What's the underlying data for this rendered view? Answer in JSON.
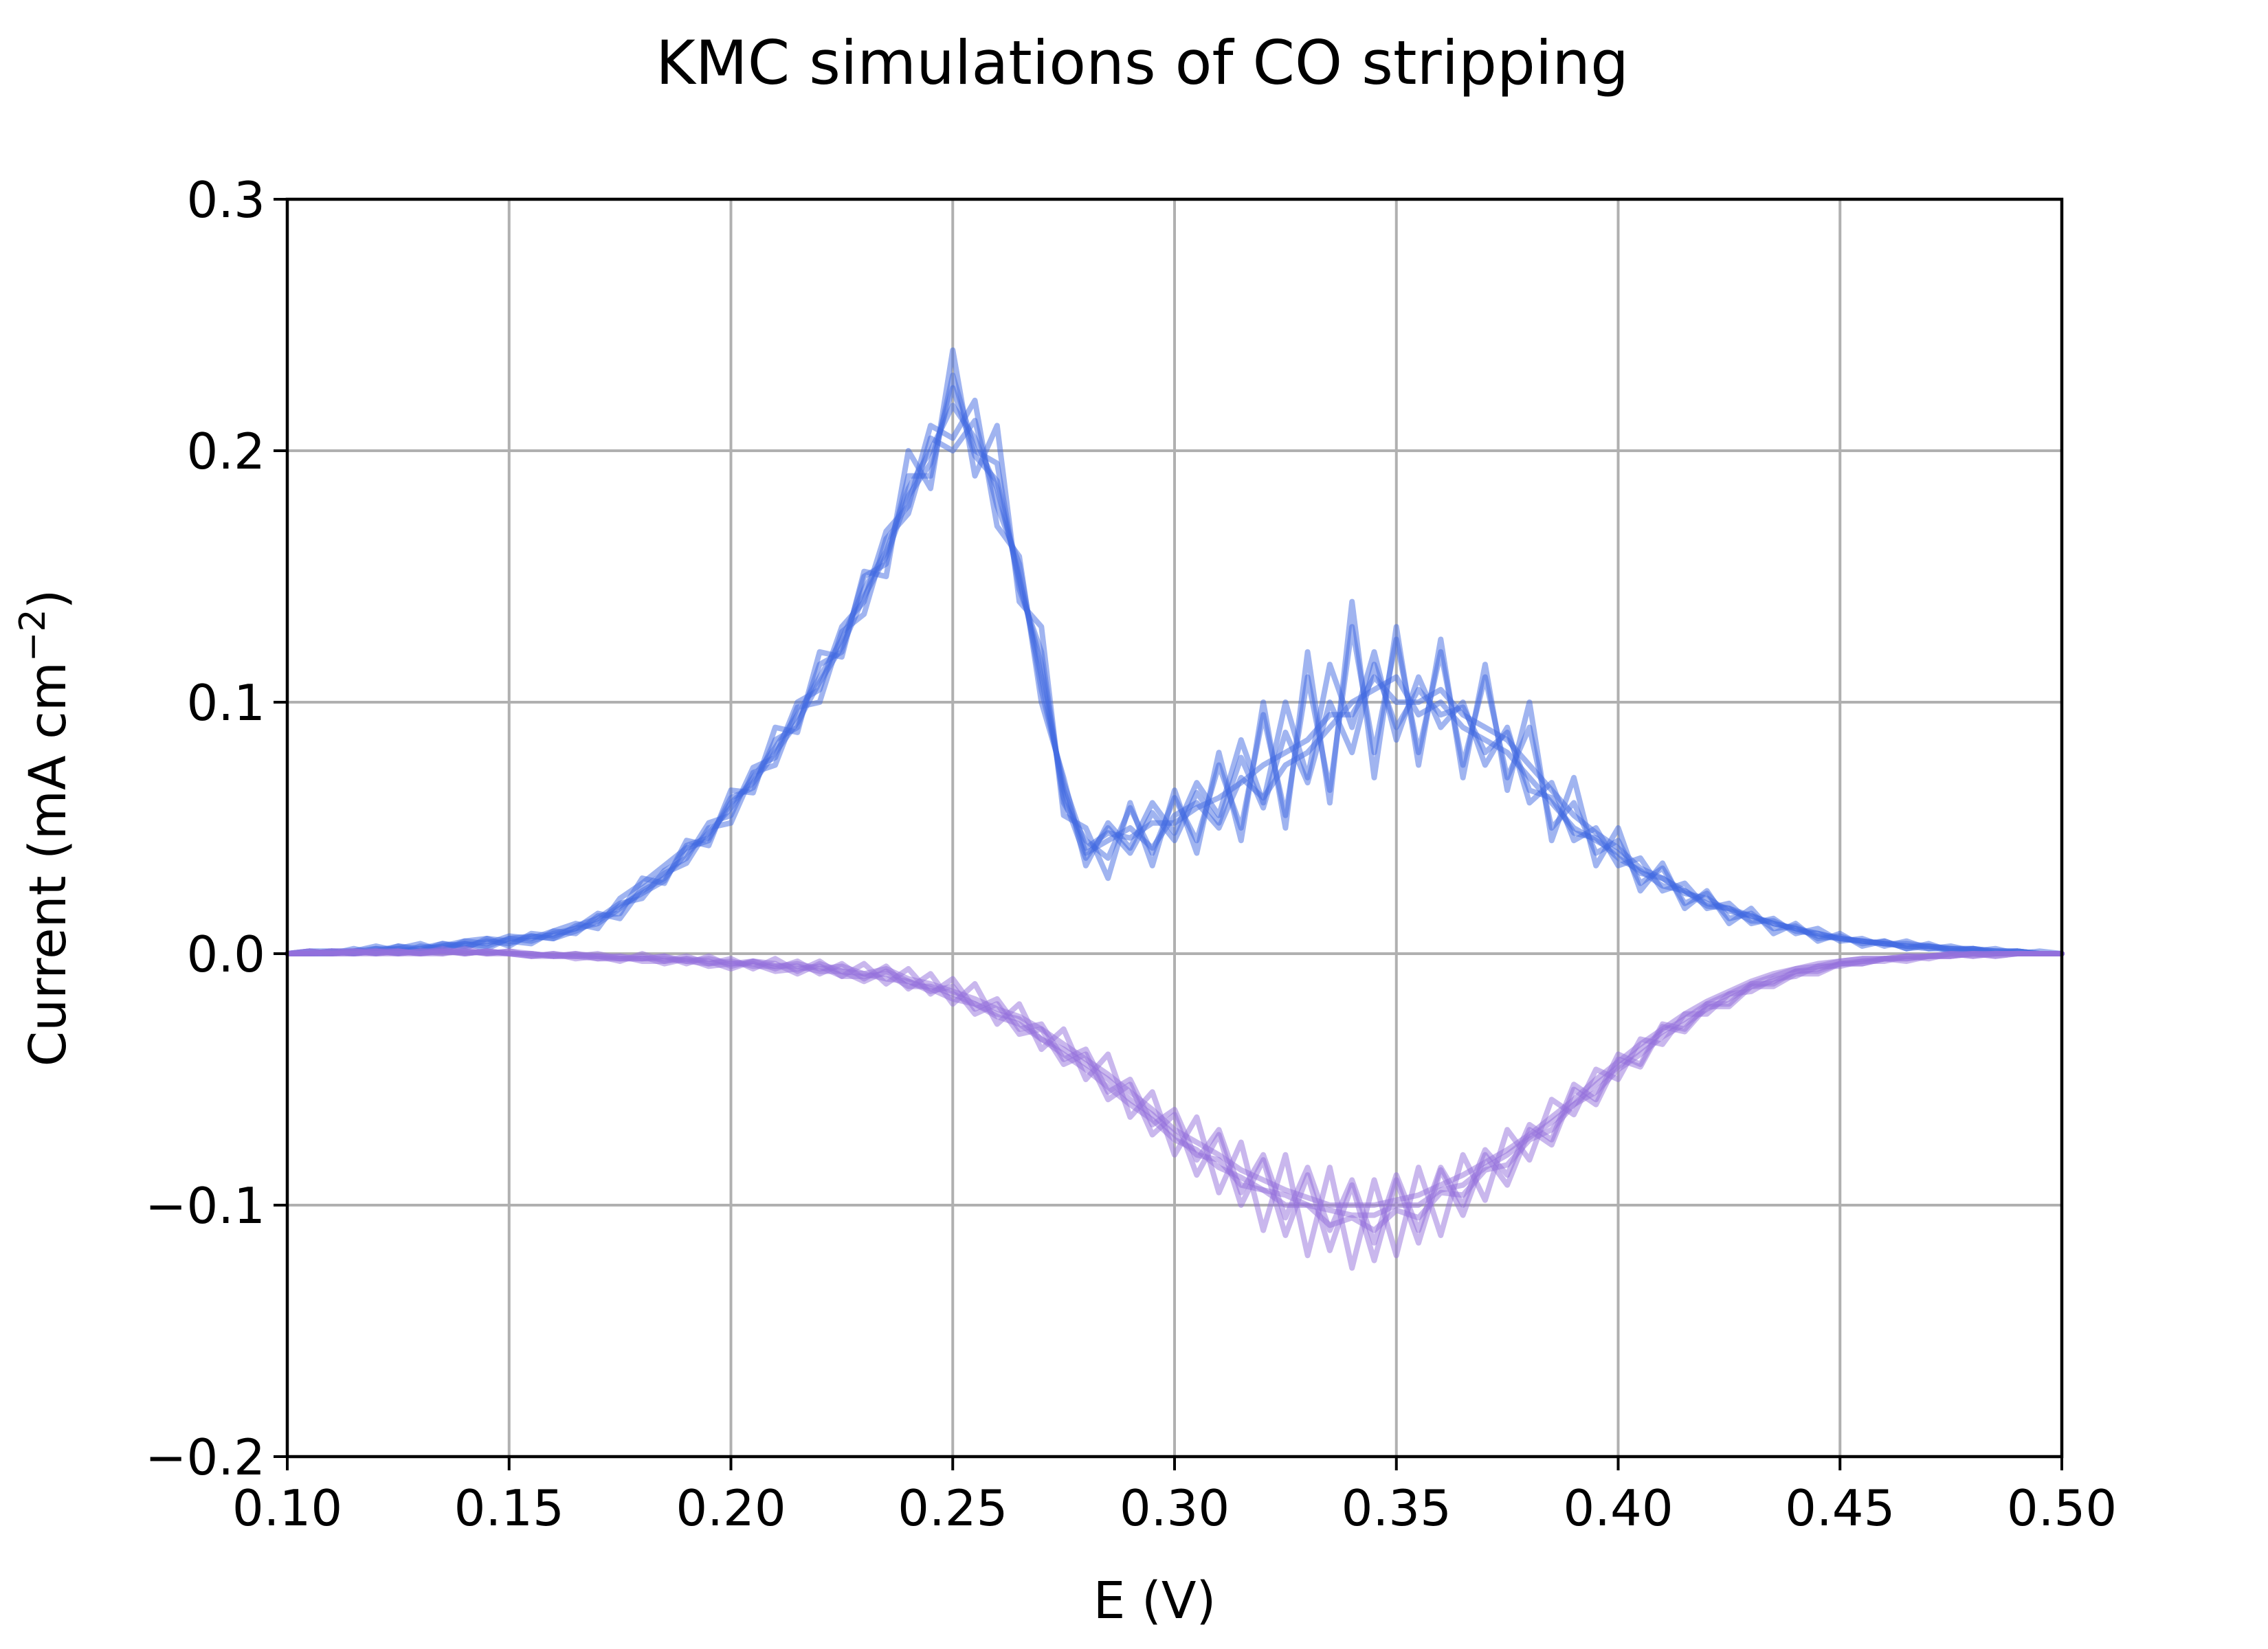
{
  "chart_data": {
    "type": "line",
    "title": "KMC simulations of CO stripping",
    "xlabel": "E (V)",
    "ylabel": "Current (mA cm",
    "ylabel_superscript": "−2",
    "ylabel_suffix": ")",
    "xlim": [
      0.1,
      0.5
    ],
    "ylim": [
      -0.2,
      0.3
    ],
    "x_ticks": [
      "0.10",
      "0.15",
      "0.20",
      "0.25",
      "0.30",
      "0.35",
      "0.40",
      "0.45",
      "0.50"
    ],
    "y_ticks": [
      "−0.2",
      "−0.1",
      "0.0",
      "0.1",
      "0.2",
      "0.3"
    ],
    "grid": true,
    "legend": "none",
    "colors": {
      "anodic": "#4169e1",
      "cathodic": "#9370db",
      "grid": "#b0b0b0"
    },
    "series_opacity": 0.5,
    "x": [
      0.1,
      0.105,
      0.11,
      0.115,
      0.12,
      0.125,
      0.13,
      0.135,
      0.14,
      0.145,
      0.15,
      0.155,
      0.16,
      0.165,
      0.17,
      0.175,
      0.18,
      0.185,
      0.19,
      0.195,
      0.2,
      0.205,
      0.21,
      0.215,
      0.22,
      0.225,
      0.23,
      0.235,
      0.24,
      0.245,
      0.25,
      0.255,
      0.26,
      0.265,
      0.27,
      0.275,
      0.28,
      0.285,
      0.29,
      0.295,
      0.3,
      0.305,
      0.31,
      0.315,
      0.32,
      0.325,
      0.33,
      0.335,
      0.34,
      0.345,
      0.35,
      0.355,
      0.36,
      0.365,
      0.37,
      0.375,
      0.38,
      0.385,
      0.39,
      0.395,
      0.4,
      0.405,
      0.41,
      0.415,
      0.42,
      0.425,
      0.43,
      0.435,
      0.44,
      0.445,
      0.45,
      0.455,
      0.46,
      0.465,
      0.47,
      0.475,
      0.48,
      0.485,
      0.49,
      0.495,
      0.5
    ],
    "series": [
      {
        "group": "anodic",
        "values": [
          0,
          0,
          0,
          0.001,
          0.002,
          0,
          0.003,
          0.002,
          0.004,
          0.003,
          0.006,
          0.005,
          0.008,
          0.01,
          0.012,
          0.018,
          0.025,
          0.03,
          0.04,
          0.048,
          0.058,
          0.07,
          0.082,
          0.095,
          0.11,
          0.125,
          0.145,
          0.16,
          0.185,
          0.2,
          0.218,
          0.205,
          0.185,
          0.15,
          0.11,
          0.065,
          0.04,
          0.045,
          0.05,
          0.042,
          0.055,
          0.06,
          0.05,
          0.07,
          0.062,
          0.075,
          0.08,
          0.09,
          0.1,
          0.105,
          0.11,
          0.095,
          0.1,
          0.09,
          0.085,
          0.08,
          0.07,
          0.06,
          0.05,
          0.045,
          0.04,
          0.032,
          0.03,
          0.025,
          0.02,
          0.018,
          0.015,
          0.012,
          0.01,
          0.008,
          0.006,
          0.005,
          0.004,
          0.004,
          0.003,
          0.002,
          0.002,
          0.001,
          0.001,
          0,
          0
        ]
      },
      {
        "group": "anodic",
        "values": [
          0,
          0,
          0.001,
          0,
          0.001,
          0.002,
          0.001,
          0.004,
          0.003,
          0.005,
          0.004,
          0.007,
          0.006,
          0.011,
          0.014,
          0.02,
          0.022,
          0.033,
          0.038,
          0.052,
          0.055,
          0.074,
          0.078,
          0.1,
          0.105,
          0.13,
          0.14,
          0.168,
          0.178,
          0.21,
          0.205,
          0.22,
          0.17,
          0.158,
          0.1,
          0.07,
          0.035,
          0.052,
          0.042,
          0.06,
          0.048,
          0.068,
          0.055,
          0.085,
          0.06,
          0.1,
          0.07,
          0.115,
          0.09,
          0.12,
          0.085,
          0.11,
          0.09,
          0.1,
          0.075,
          0.09,
          0.06,
          0.068,
          0.045,
          0.05,
          0.035,
          0.038,
          0.025,
          0.028,
          0.018,
          0.02,
          0.012,
          0.014,
          0.008,
          0.01,
          0.005,
          0.006,
          0.003,
          0.005,
          0.002,
          0.003,
          0.001,
          0.002,
          0,
          0.001,
          0
        ]
      },
      {
        "group": "anodic",
        "values": [
          0,
          0.001,
          0,
          0.002,
          0,
          0.003,
          0.002,
          0.003,
          0.005,
          0.004,
          0.007,
          0.006,
          0.009,
          0.012,
          0.01,
          0.022,
          0.028,
          0.035,
          0.042,
          0.045,
          0.062,
          0.066,
          0.085,
          0.09,
          0.115,
          0.12,
          0.15,
          0.155,
          0.19,
          0.19,
          0.23,
          0.2,
          0.195,
          0.145,
          0.12,
          0.06,
          0.045,
          0.038,
          0.058,
          0.04,
          0.062,
          0.045,
          0.075,
          0.05,
          0.095,
          0.055,
          0.11,
          0.065,
          0.13,
          0.08,
          0.125,
          0.08,
          0.12,
          0.075,
          0.11,
          0.07,
          0.09,
          0.05,
          0.06,
          0.04,
          0.045,
          0.028,
          0.034,
          0.02,
          0.024,
          0.014,
          0.016,
          0.01,
          0.011,
          0.006,
          0.007,
          0.004,
          0.005,
          0.002,
          0.003,
          0.001,
          0.002,
          0,
          0.001,
          0,
          0
        ]
      },
      {
        "group": "anodic",
        "values": [
          0,
          0,
          0.001,
          0.001,
          0.003,
          0.001,
          0.002,
          0.004,
          0.002,
          0.006,
          0.005,
          0.004,
          0.009,
          0.008,
          0.015,
          0.016,
          0.03,
          0.028,
          0.045,
          0.043,
          0.065,
          0.064,
          0.09,
          0.088,
          0.12,
          0.118,
          0.152,
          0.15,
          0.2,
          0.185,
          0.24,
          0.19,
          0.21,
          0.14,
          0.13,
          0.055,
          0.05,
          0.03,
          0.06,
          0.035,
          0.065,
          0.04,
          0.08,
          0.045,
          0.1,
          0.05,
          0.12,
          0.06,
          0.14,
          0.07,
          0.13,
          0.075,
          0.125,
          0.07,
          0.115,
          0.065,
          0.1,
          0.045,
          0.07,
          0.035,
          0.05,
          0.025,
          0.036,
          0.018,
          0.025,
          0.012,
          0.018,
          0.008,
          0.012,
          0.005,
          0.008,
          0.003,
          0.005,
          0.002,
          0.004,
          0.001,
          0.002,
          0,
          0.001,
          0,
          0
        ]
      },
      {
        "group": "anodic",
        "values": [
          0,
          0.001,
          0.001,
          0,
          0.002,
          0.002,
          0.004,
          0.001,
          0.005,
          0.006,
          0.003,
          0.008,
          0.007,
          0.01,
          0.016,
          0.014,
          0.026,
          0.032,
          0.036,
          0.05,
          0.052,
          0.072,
          0.075,
          0.098,
          0.1,
          0.128,
          0.135,
          0.165,
          0.175,
          0.205,
          0.2,
          0.212,
          0.178,
          0.155,
          0.105,
          0.068,
          0.042,
          0.048,
          0.046,
          0.052,
          0.052,
          0.058,
          0.062,
          0.068,
          0.075,
          0.08,
          0.085,
          0.095,
          0.095,
          0.11,
          0.1,
          0.1,
          0.105,
          0.095,
          0.09,
          0.085,
          0.075,
          0.065,
          0.055,
          0.048,
          0.042,
          0.034,
          0.03,
          0.024,
          0.022,
          0.017,
          0.015,
          0.012,
          0.01,
          0.007,
          0.006,
          0.005,
          0.004,
          0.003,
          0.003,
          0.002,
          0.002,
          0.001,
          0.001,
          0,
          0
        ]
      },
      {
        "group": "anodic",
        "values": [
          0,
          0,
          0,
          0.001,
          0.001,
          0.003,
          0.001,
          0.003,
          0.004,
          0.002,
          0.006,
          0.007,
          0.006,
          0.009,
          0.013,
          0.019,
          0.024,
          0.029,
          0.043,
          0.046,
          0.06,
          0.068,
          0.08,
          0.092,
          0.108,
          0.122,
          0.142,
          0.158,
          0.182,
          0.195,
          0.225,
          0.198,
          0.188,
          0.148,
          0.115,
          0.062,
          0.038,
          0.05,
          0.04,
          0.056,
          0.045,
          0.064,
          0.052,
          0.078,
          0.058,
          0.088,
          0.068,
          0.1,
          0.08,
          0.115,
          0.09,
          0.105,
          0.095,
          0.098,
          0.08,
          0.088,
          0.065,
          0.062,
          0.048,
          0.046,
          0.038,
          0.033,
          0.027,
          0.025,
          0.019,
          0.018,
          0.013,
          0.013,
          0.009,
          0.008,
          0.006,
          0.005,
          0.004,
          0.003,
          0.002,
          0.002,
          0.001,
          0.001,
          0,
          0,
          0
        ]
      },
      {
        "group": "cathodic",
        "values": [
          0,
          0,
          0,
          0.001,
          0,
          0.001,
          0,
          0.002,
          0,
          0.001,
          0,
          0,
          -0.001,
          0,
          -0.002,
          -0.001,
          -0.002,
          -0.001,
          -0.003,
          -0.002,
          -0.004,
          -0.003,
          -0.005,
          -0.004,
          -0.006,
          -0.005,
          -0.008,
          -0.006,
          -0.01,
          -0.012,
          -0.015,
          -0.018,
          -0.022,
          -0.025,
          -0.03,
          -0.036,
          -0.042,
          -0.048,
          -0.055,
          -0.062,
          -0.07,
          -0.075,
          -0.08,
          -0.086,
          -0.09,
          -0.094,
          -0.097,
          -0.1,
          -0.1,
          -0.1,
          -0.098,
          -0.096,
          -0.092,
          -0.088,
          -0.083,
          -0.078,
          -0.072,
          -0.065,
          -0.058,
          -0.05,
          -0.043,
          -0.036,
          -0.03,
          -0.024,
          -0.019,
          -0.015,
          -0.011,
          -0.008,
          -0.006,
          -0.004,
          -0.003,
          -0.002,
          -0.002,
          -0.001,
          -0.001,
          0,
          -0.001,
          0,
          0,
          0,
          0
        ]
      },
      {
        "group": "cathodic",
        "values": [
          0,
          0.001,
          0,
          0,
          0.001,
          0,
          0.001,
          0,
          0.001,
          0,
          0.001,
          -0.001,
          0,
          -0.001,
          -0.001,
          -0.003,
          0,
          -0.003,
          -0.001,
          -0.004,
          -0.002,
          -0.006,
          -0.002,
          -0.007,
          -0.003,
          -0.009,
          -0.004,
          -0.012,
          -0.006,
          -0.016,
          -0.01,
          -0.022,
          -0.018,
          -0.03,
          -0.028,
          -0.042,
          -0.038,
          -0.055,
          -0.05,
          -0.068,
          -0.062,
          -0.082,
          -0.07,
          -0.095,
          -0.08,
          -0.105,
          -0.085,
          -0.11,
          -0.09,
          -0.115,
          -0.088,
          -0.11,
          -0.085,
          -0.1,
          -0.078,
          -0.088,
          -0.068,
          -0.074,
          -0.052,
          -0.058,
          -0.04,
          -0.044,
          -0.028,
          -0.03,
          -0.02,
          -0.02,
          -0.012,
          -0.012,
          -0.007,
          -0.007,
          -0.004,
          -0.004,
          -0.002,
          -0.002,
          -0.001,
          -0.001,
          0,
          -0.001,
          0,
          0,
          0
        ]
      },
      {
        "group": "cathodic",
        "values": [
          0,
          0,
          0.001,
          0,
          0,
          0.001,
          0,
          0.001,
          0,
          0.001,
          0,
          0,
          -0.001,
          -0.001,
          0,
          -0.002,
          -0.002,
          -0.001,
          -0.004,
          -0.001,
          -0.005,
          -0.003,
          -0.006,
          -0.003,
          -0.008,
          -0.004,
          -0.01,
          -0.005,
          -0.014,
          -0.008,
          -0.02,
          -0.012,
          -0.028,
          -0.02,
          -0.038,
          -0.03,
          -0.05,
          -0.04,
          -0.065,
          -0.055,
          -0.08,
          -0.065,
          -0.095,
          -0.075,
          -0.11,
          -0.08,
          -0.12,
          -0.085,
          -0.125,
          -0.09,
          -0.12,
          -0.085,
          -0.112,
          -0.08,
          -0.098,
          -0.07,
          -0.082,
          -0.058,
          -0.064,
          -0.046,
          -0.05,
          -0.034,
          -0.036,
          -0.024,
          -0.024,
          -0.016,
          -0.015,
          -0.01,
          -0.009,
          -0.005,
          -0.005,
          -0.003,
          -0.003,
          -0.001,
          -0.002,
          0,
          -0.001,
          0,
          0,
          0,
          0
        ]
      },
      {
        "group": "cathodic",
        "values": [
          0,
          0,
          0,
          0.001,
          0.001,
          0,
          0,
          0.001,
          0.001,
          0,
          0,
          -0.001,
          0,
          -0.002,
          -0.001,
          -0.001,
          -0.003,
          -0.003,
          -0.002,
          -0.005,
          -0.004,
          -0.004,
          -0.007,
          -0.006,
          -0.005,
          -0.009,
          -0.009,
          -0.008,
          -0.013,
          -0.013,
          -0.016,
          -0.02,
          -0.024,
          -0.026,
          -0.034,
          -0.038,
          -0.044,
          -0.05,
          -0.058,
          -0.064,
          -0.072,
          -0.08,
          -0.082,
          -0.092,
          -0.094,
          -0.1,
          -0.1,
          -0.108,
          -0.105,
          -0.11,
          -0.102,
          -0.105,
          -0.095,
          -0.096,
          -0.086,
          -0.084,
          -0.074,
          -0.07,
          -0.06,
          -0.055,
          -0.046,
          -0.04,
          -0.033,
          -0.028,
          -0.022,
          -0.018,
          -0.013,
          -0.011,
          -0.007,
          -0.006,
          -0.004,
          -0.003,
          -0.002,
          -0.002,
          -0.001,
          -0.001,
          0,
          0,
          0,
          0,
          0
        ]
      },
      {
        "group": "cathodic",
        "values": [
          0,
          0.001,
          0,
          0,
          0.001,
          0.001,
          0,
          0,
          0.002,
          0,
          0.001,
          0,
          -0.001,
          -0.001,
          -0.002,
          -0.002,
          -0.001,
          -0.004,
          -0.002,
          -0.003,
          -0.006,
          -0.003,
          -0.004,
          -0.008,
          -0.004,
          -0.007,
          -0.011,
          -0.007,
          -0.011,
          -0.015,
          -0.013,
          -0.024,
          -0.02,
          -0.032,
          -0.03,
          -0.044,
          -0.04,
          -0.058,
          -0.052,
          -0.072,
          -0.064,
          -0.088,
          -0.072,
          -0.1,
          -0.082,
          -0.112,
          -0.088,
          -0.118,
          -0.092,
          -0.122,
          -0.09,
          -0.115,
          -0.086,
          -0.104,
          -0.08,
          -0.092,
          -0.07,
          -0.076,
          -0.054,
          -0.06,
          -0.042,
          -0.045,
          -0.029,
          -0.031,
          -0.021,
          -0.021,
          -0.013,
          -0.013,
          -0.008,
          -0.008,
          -0.004,
          -0.004,
          -0.002,
          -0.003,
          -0.001,
          -0.001,
          0,
          -0.001,
          0,
          0,
          0
        ]
      },
      {
        "group": "cathodic",
        "values": [
          0,
          0,
          0.001,
          0.001,
          0,
          0,
          0.001,
          0.001,
          0,
          0.001,
          0,
          -0.001,
          -0.001,
          0,
          -0.001,
          -0.002,
          -0.002,
          -0.002,
          -0.003,
          -0.004,
          -0.003,
          -0.005,
          -0.005,
          -0.005,
          -0.007,
          -0.007,
          -0.008,
          -0.01,
          -0.011,
          -0.014,
          -0.018,
          -0.02,
          -0.025,
          -0.028,
          -0.034,
          -0.04,
          -0.046,
          -0.053,
          -0.06,
          -0.066,
          -0.074,
          -0.078,
          -0.085,
          -0.089,
          -0.094,
          -0.096,
          -0.1,
          -0.102,
          -0.104,
          -0.104,
          -0.1,
          -0.1,
          -0.094,
          -0.092,
          -0.085,
          -0.08,
          -0.073,
          -0.067,
          -0.06,
          -0.052,
          -0.045,
          -0.038,
          -0.031,
          -0.026,
          -0.02,
          -0.016,
          -0.012,
          -0.009,
          -0.006,
          -0.005,
          -0.003,
          -0.002,
          -0.002,
          -0.001,
          -0.001,
          0,
          0,
          0,
          0,
          0,
          0
        ]
      }
    ]
  }
}
